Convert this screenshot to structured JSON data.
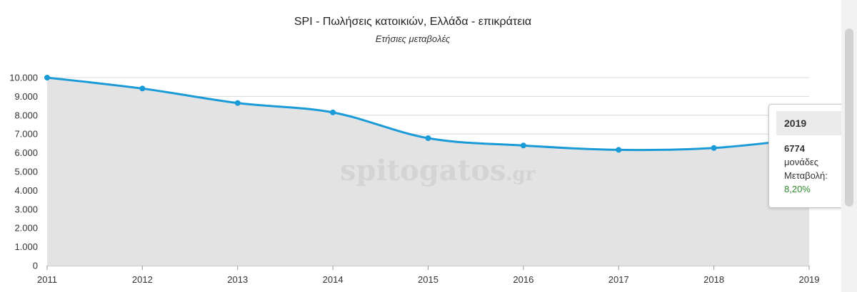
{
  "colors": {
    "line": "#1a9bd7",
    "area": "#e3e3e3",
    "grid": "#d9d9d9",
    "positive_change": "#2d8a2d"
  },
  "watermark": {
    "text": "spitogatos",
    "suffix": ".gr"
  },
  "tooltip": {
    "year": "2019",
    "value": "6774",
    "unit": "μονάδες",
    "change_label": "Μεταβολή:",
    "change": "8,20%"
  },
  "chart_data": {
    "type": "area",
    "title": "SPI - Πωλήσεις κατοικιών, Ελλάδα - επικράτεια",
    "subtitle": "Ετήσιες μεταβολές",
    "xlabel": "",
    "ylabel": "",
    "x": [
      "2011",
      "2012",
      "2013",
      "2014",
      "2015",
      "2016",
      "2017",
      "2018",
      "2019"
    ],
    "series": [
      {
        "values": [
          10000,
          9420,
          8650,
          8150,
          6780,
          6390,
          6160,
          6260,
          6774
        ]
      }
    ],
    "ylim": [
      0,
      10000
    ],
    "y_ticks": [
      "0",
      "1.000",
      "2.000",
      "3.000",
      "4.000",
      "5.000",
      "6.000",
      "7.000",
      "8.000",
      "9.000",
      "10.000"
    ],
    "grid": true,
    "legend": "none"
  }
}
